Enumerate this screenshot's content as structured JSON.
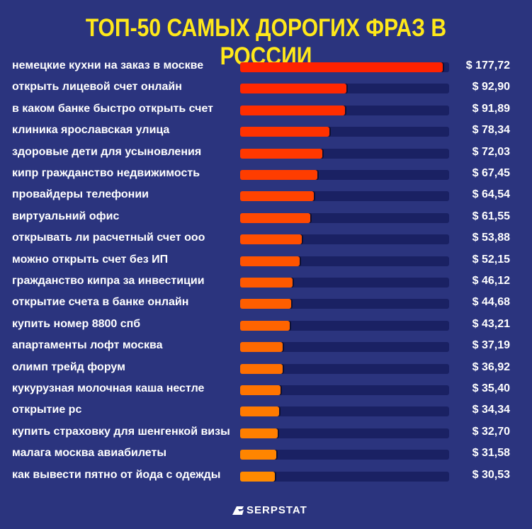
{
  "chart_data": {
    "type": "bar",
    "orientation": "horizontal",
    "title": "ТОП-50 САМЫХ ДОРОГИХ ФРАЗ В РОССИИ",
    "currency": "$",
    "categories": [
      "немецкие кухни на заказ в москве",
      "открыть лицевой счет онлайн",
      "в каком банке быстро открыть счет",
      "клиника ярославская улица",
      "здоровые дети для усыновления",
      "кипр гражданство недвижимость",
      "провайдеры телефонии",
      "виртуальний офис",
      "открывать ли расчетный счет ооо",
      "можно открыть счет без ИП",
      "гражданство кипра за инвестиции",
      "открытие счета в банке онлайн",
      "купить номер 8800 спб",
      "апартаменты лофт москва",
      "олимп трейд форум",
      "кукурузная молочная каша нестле",
      "открытие рс",
      "купить страховку для шенгенкой визы",
      "малага москва авиабилеты",
      "как вывести пятно от йода с одежды"
    ],
    "values": [
      177.72,
      92.9,
      91.89,
      78.34,
      72.03,
      67.45,
      64.54,
      61.55,
      53.88,
      52.15,
      46.12,
      44.68,
      43.21,
      37.19,
      36.92,
      35.4,
      34.34,
      32.7,
      31.58,
      30.53
    ],
    "value_labels": [
      "$ 177,72",
      "$ 92,90",
      "$ 91,89",
      "$ 78,34",
      "$ 72,03",
      "$ 67,45",
      "$ 64,54",
      "$ 61,55",
      "$ 53,88",
      "$ 52,15",
      "$ 46,12",
      "$ 44,68",
      "$ 43,21",
      "$ 37,19",
      "$ 36,92",
      "$ 35,40",
      "$ 34,34",
      "$ 32,70",
      "$ 31,58",
      "$ 30,53"
    ],
    "xlim": [
      0,
      183
    ],
    "grid": false,
    "colors": {
      "top": "#ff2200",
      "bottom": "#ff8a00",
      "track": "#1a2163",
      "background": "#2b347e",
      "title": "#ffe81a"
    }
  },
  "brand": "SERPSTAT"
}
